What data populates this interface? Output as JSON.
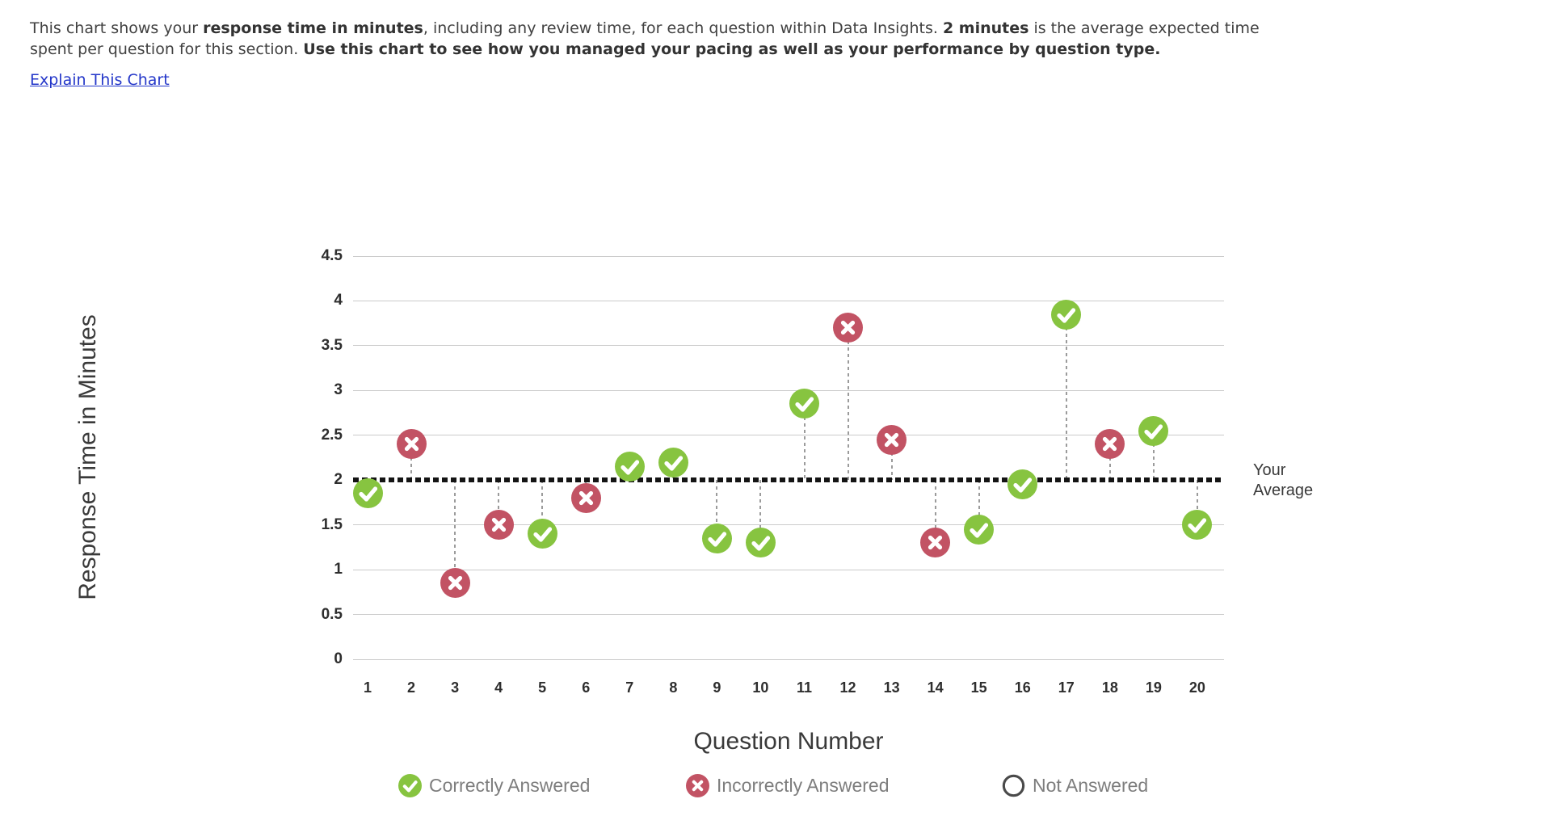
{
  "header": {
    "lines": [
      [
        {
          "text": "This chart shows your ",
          "bold": false
        },
        {
          "text": "response time in minutes",
          "bold": true
        },
        {
          "text": ", including any review time, for each question within Data Insights. ",
          "bold": false
        },
        {
          "text": "2 minutes",
          "bold": true
        },
        {
          "text": " is the average expected time",
          "bold": false
        }
      ],
      [
        {
          "text": "spent per question for this section. ",
          "bold": false
        },
        {
          "text": "Use this chart to see how you managed your pacing as well as your performance by question type.",
          "bold": true
        }
      ]
    ],
    "link_label": "Explain This Chart"
  },
  "chart_data": {
    "type": "scatter",
    "title": "",
    "xlabel": "Question Number",
    "ylabel": "Response Time in Minutes",
    "categories": [
      "1",
      "2",
      "3",
      "4",
      "5",
      "6",
      "7",
      "8",
      "9",
      "10",
      "11",
      "12",
      "13",
      "14",
      "15",
      "16",
      "17",
      "18",
      "19",
      "20"
    ],
    "values": [
      1.85,
      2.4,
      0.85,
      1.5,
      1.4,
      1.8,
      2.15,
      2.2,
      1.35,
      1.3,
      2.85,
      3.7,
      2.45,
      1.3,
      1.45,
      1.95,
      3.85,
      2.4,
      2.55,
      1.5
    ],
    "point_status": [
      "correct",
      "incorrect",
      "incorrect",
      "incorrect",
      "correct",
      "incorrect",
      "correct",
      "correct",
      "correct",
      "correct",
      "correct",
      "incorrect",
      "incorrect",
      "incorrect",
      "correct",
      "correct",
      "correct",
      "incorrect",
      "correct",
      "correct"
    ],
    "ylim": [
      0,
      4.5
    ],
    "yticks": [
      "0",
      "0.5",
      "1",
      "1.5",
      "2",
      "2.5",
      "3",
      "3.5",
      "4",
      "4.5"
    ],
    "grid": true,
    "average_line": {
      "value": 2,
      "label": "Your Average"
    },
    "legend": [
      {
        "status": "correct",
        "label": "Correctly Answered"
      },
      {
        "status": "incorrect",
        "label": "Incorrectly Answered"
      },
      {
        "status": "not-answered",
        "label": "Not Answered"
      }
    ]
  },
  "colors": {
    "correct": "#87C440",
    "incorrect": "#C25364",
    "not_answered_ring": "#4A4A4A",
    "average_line": "#141414",
    "link": "#2336C9"
  }
}
